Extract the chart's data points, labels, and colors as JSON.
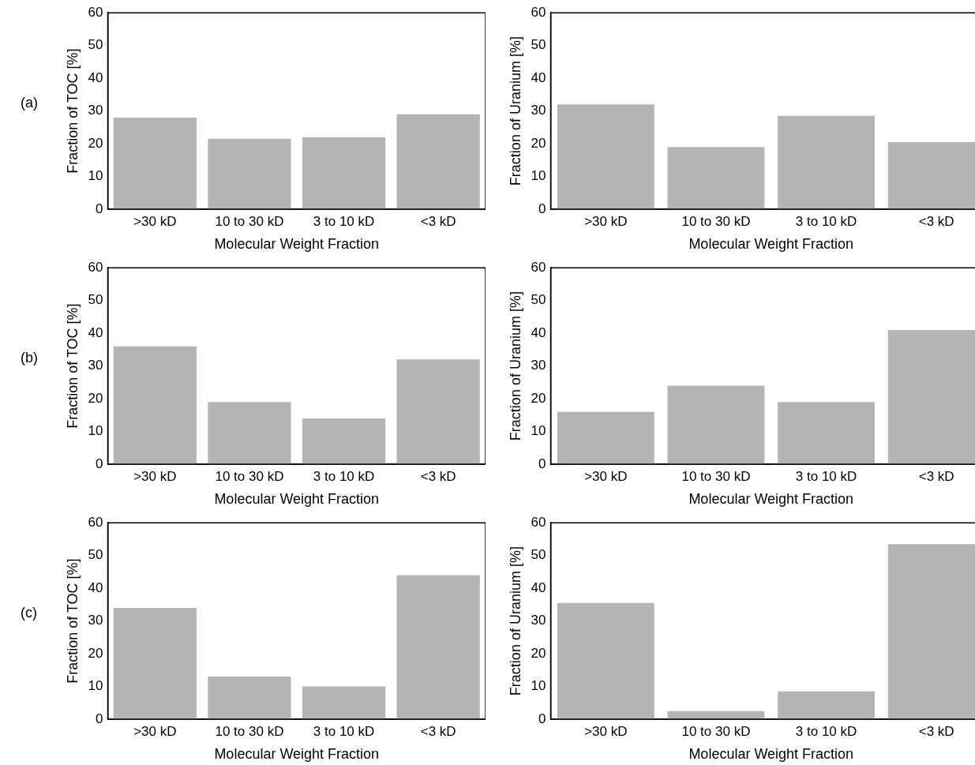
{
  "chart_data": [
    {
      "type": "bar",
      "annotations": [
        "(a)"
      ],
      "xlabel": "Molecular Weight Fraction",
      "ylabel": "Fraction of TOC [%]",
      "categories": [
        ">30 kD",
        "10 to 30 kD",
        "3 to 10 kD",
        "<3 kD"
      ],
      "values": [
        28,
        21.5,
        22,
        29
      ],
      "color": "#b4b4b4",
      "ylim": [
        0,
        60
      ],
      "yticks": [
        0,
        10,
        20,
        30,
        40,
        50,
        60
      ],
      "grid": false,
      "legend": false
    },
    {
      "type": "bar",
      "xlabel": "Molecular Weight Fraction",
      "ylabel": "Fraction of Uranium [%]",
      "categories": [
        ">30 kD",
        "10 to 30 kD",
        "3 to 10 kD",
        "<3 kD"
      ],
      "values": [
        32,
        19,
        28.5,
        20.5
      ],
      "color": "#b4b4b4",
      "ylim": [
        0,
        60
      ],
      "yticks": [
        0,
        10,
        20,
        30,
        40,
        50,
        60
      ],
      "grid": false,
      "legend": false
    },
    {
      "type": "bar",
      "annotations": [
        "(b)"
      ],
      "xlabel": "Molecular Weight Fraction",
      "ylabel": "Fraction of TOC [%]",
      "categories": [
        ">30 kD",
        "10 to 30 kD",
        "3 to 10 kD",
        "<3 kD"
      ],
      "values": [
        36,
        19,
        14,
        32
      ],
      "color": "#b4b4b4",
      "ylim": [
        0,
        60
      ],
      "yticks": [
        0,
        10,
        20,
        30,
        40,
        50,
        60
      ],
      "grid": false,
      "legend": false
    },
    {
      "type": "bar",
      "xlabel": "Molecular Weight Fraction",
      "ylabel": "Fraction of Uranium [%]",
      "categories": [
        ">30 kD",
        "10 to 30 kD",
        "3 to 10 kD",
        "<3 kD"
      ],
      "values": [
        16,
        24,
        19,
        41
      ],
      "color": "#b4b4b4",
      "ylim": [
        0,
        60
      ],
      "yticks": [
        0,
        10,
        20,
        30,
        40,
        50,
        60
      ],
      "grid": false,
      "legend": false
    },
    {
      "type": "bar",
      "annotations": [
        "(c)"
      ],
      "xlabel": "Molecular Weight Fraction",
      "ylabel": "Fraction of TOC [%]",
      "categories": [
        ">30 kD",
        "10 to 30 kD",
        "3 to 10 kD",
        "<3 kD"
      ],
      "values": [
        34,
        13,
        10,
        44
      ],
      "color": "#b4b4b4",
      "ylim": [
        0,
        60
      ],
      "yticks": [
        0,
        10,
        20,
        30,
        40,
        50,
        60
      ],
      "grid": false,
      "legend": false
    },
    {
      "type": "bar",
      "xlabel": "Molecular Weight Fraction",
      "ylabel": "Fraction of Uranium [%]",
      "categories": [
        ">30 kD",
        "10 to 30 kD",
        "3 to 10 kD",
        "<3 kD"
      ],
      "values": [
        35.5,
        2.5,
        8.5,
        53.5
      ],
      "color": "#b4b4b4",
      "ylim": [
        0,
        60
      ],
      "yticks": [
        0,
        10,
        20,
        30,
        40,
        50,
        60
      ],
      "grid": false,
      "legend": false
    }
  ]
}
